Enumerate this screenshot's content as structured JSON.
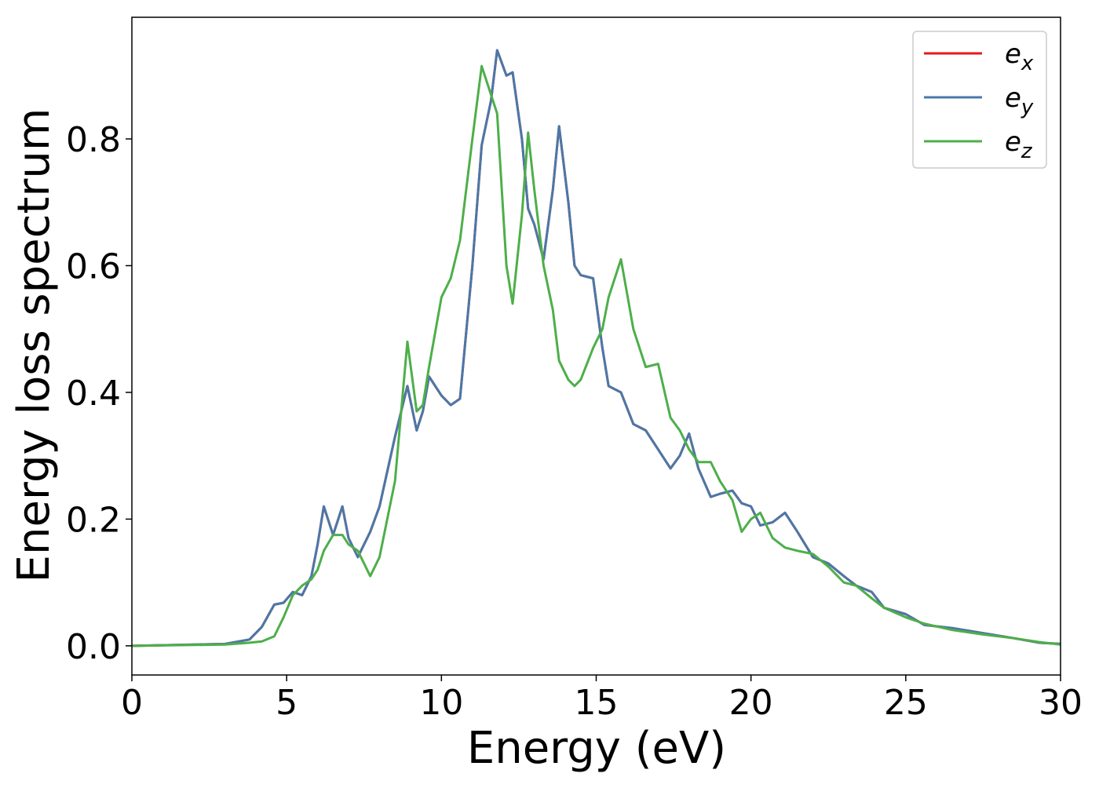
{
  "chart_data": {
    "type": "line",
    "xlabel": "Energy (eV)",
    "ylabel": "Energy loss spectrum",
    "xlim": [
      0,
      30
    ],
    "ylim": [
      -0.046,
      0.992
    ],
    "xticks": [
      0,
      5,
      10,
      15,
      20,
      25,
      30
    ],
    "yticks": [
      {
        "value": 0,
        "label": "0.0"
      },
      0.2,
      0.4,
      0.6,
      0.8
    ],
    "legend": "upper right",
    "x": [
      0,
      3,
      3.8,
      4.2,
      4.6,
      4.9,
      5.2,
      5.5,
      5.8,
      6.0,
      6.2,
      6.5,
      6.8,
      7.0,
      7.3,
      7.7,
      8.0,
      8.5,
      8.9,
      9.2,
      9.4,
      9.6,
      10.0,
      10.3,
      10.6,
      11.0,
      11.3,
      11.6,
      11.8,
      12.1,
      12.3,
      12.6,
      12.8,
      13.0,
      13.3,
      13.6,
      13.8,
      14.1,
      14.3,
      14.5,
      14.9,
      15.2,
      15.4,
      15.8,
      16.2,
      16.6,
      17.0,
      17.4,
      17.7,
      18.0,
      18.3,
      18.7,
      19.0,
      19.4,
      19.7,
      20.0,
      20.3,
      20.7,
      21.1,
      21.5,
      22.0,
      22.5,
      23.0,
      23.4,
      23.9,
      24.3,
      25.0,
      25.6,
      26.5,
      27.5,
      28.5,
      29.3,
      30
    ],
    "series": [
      {
        "name": "e_x",
        "color": "#e41a1c",
        "values": [
          0,
          0.003,
          0.01,
          0.03,
          0.065,
          0.068,
          0.085,
          0.08,
          0.11,
          0.16,
          0.22,
          0.175,
          0.22,
          0.17,
          0.14,
          0.18,
          0.22,
          0.33,
          0.41,
          0.34,
          0.37,
          0.425,
          0.395,
          0.38,
          0.39,
          0.6,
          0.79,
          0.86,
          0.94,
          0.9,
          0.905,
          0.8,
          0.69,
          0.665,
          0.61,
          0.72,
          0.82,
          0.7,
          0.6,
          0.585,
          0.58,
          0.47,
          0.41,
          0.4,
          0.35,
          0.34,
          0.31,
          0.28,
          0.3,
          0.335,
          0.28,
          0.235,
          0.24,
          0.245,
          0.225,
          0.22,
          0.19,
          0.195,
          0.21,
          0.18,
          0.14,
          0.13,
          0.11,
          0.095,
          0.085,
          0.06,
          0.05,
          0.033,
          0.028,
          0.02,
          0.012,
          0.005,
          0.003
        ]
      },
      {
        "name": "e_y",
        "color": "#4a78a8",
        "values": [
          0,
          0.003,
          0.01,
          0.03,
          0.065,
          0.068,
          0.085,
          0.08,
          0.11,
          0.16,
          0.22,
          0.175,
          0.22,
          0.17,
          0.14,
          0.18,
          0.22,
          0.33,
          0.41,
          0.34,
          0.37,
          0.425,
          0.395,
          0.38,
          0.39,
          0.6,
          0.79,
          0.86,
          0.94,
          0.9,
          0.905,
          0.8,
          0.69,
          0.665,
          0.61,
          0.72,
          0.82,
          0.7,
          0.6,
          0.585,
          0.58,
          0.47,
          0.41,
          0.4,
          0.35,
          0.34,
          0.31,
          0.28,
          0.3,
          0.335,
          0.28,
          0.235,
          0.24,
          0.245,
          0.225,
          0.22,
          0.19,
          0.195,
          0.21,
          0.18,
          0.14,
          0.13,
          0.11,
          0.095,
          0.085,
          0.06,
          0.05,
          0.033,
          0.028,
          0.02,
          0.012,
          0.005,
          0.003
        ]
      },
      {
        "name": "e_z",
        "color": "#4daf4a",
        "values": [
          0,
          0.002,
          0.005,
          0.007,
          0.015,
          0.045,
          0.08,
          0.095,
          0.105,
          0.12,
          0.15,
          0.175,
          0.175,
          0.16,
          0.15,
          0.11,
          0.14,
          0.26,
          0.48,
          0.37,
          0.38,
          0.44,
          0.55,
          0.58,
          0.64,
          0.8,
          0.915,
          0.87,
          0.84,
          0.6,
          0.54,
          0.68,
          0.81,
          0.72,
          0.6,
          0.53,
          0.45,
          0.42,
          0.41,
          0.42,
          0.47,
          0.5,
          0.55,
          0.61,
          0.5,
          0.44,
          0.445,
          0.36,
          0.34,
          0.31,
          0.29,
          0.29,
          0.26,
          0.23,
          0.18,
          0.2,
          0.21,
          0.17,
          0.155,
          0.15,
          0.145,
          0.125,
          0.1,
          0.095,
          0.075,
          0.06,
          0.045,
          0.035,
          0.025,
          0.018,
          0.012,
          0.006,
          0.002
        ]
      }
    ]
  }
}
